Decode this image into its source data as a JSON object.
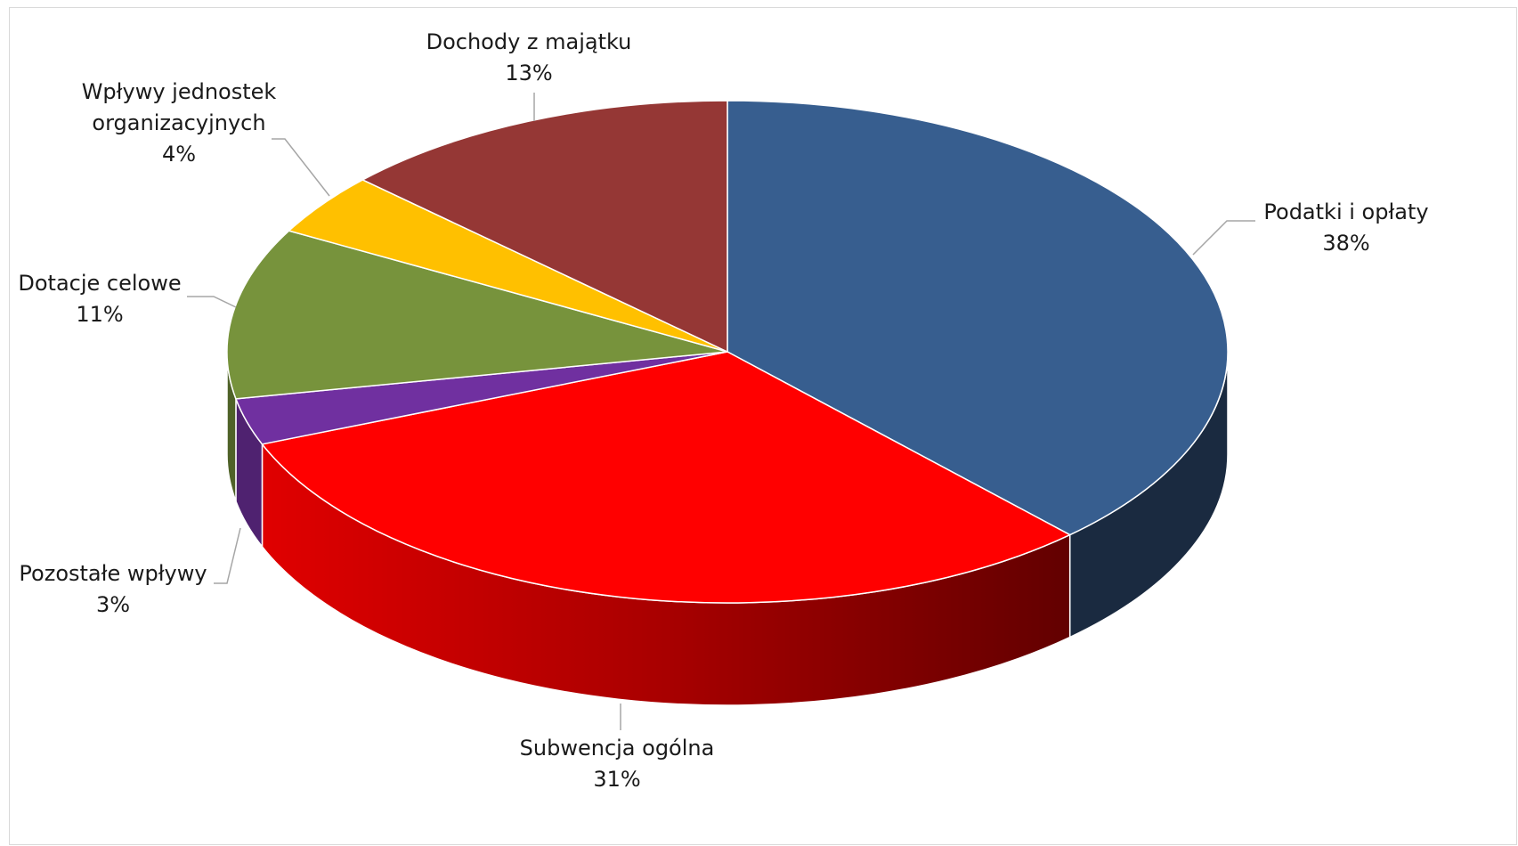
{
  "chart_data": {
    "type": "pie",
    "style": "3d",
    "title": "",
    "slices": [
      {
        "label": "Podatki i opłaty",
        "value": 38,
        "display": "38%",
        "color": "#375E8F",
        "side_color": "#1A2A40"
      },
      {
        "label": "Subwencja ogólna",
        "value": 31,
        "display": "31%",
        "color": "#FF0000",
        "side_color": "#C00000"
      },
      {
        "label": "Pozostałe wpływy",
        "value": 3,
        "display": "3%",
        "color": "#7030A0",
        "side_color": "#4F2270"
      },
      {
        "label": "Dotacje celowe",
        "value": 11,
        "display": "11%",
        "color": "#77933C",
        "side_color": "#4F6228"
      },
      {
        "label": "Wpływy jednostek organizacyjnych",
        "label_lines": [
          "Wpływy jednostek",
          "organizacyjnych"
        ],
        "value": 4,
        "display": "4%",
        "color": "#FFC000",
        "side_color": "#B38600"
      },
      {
        "label": "Dochody z majątku",
        "value": 13,
        "display": "13%",
        "color": "#953735",
        "side_color": "#632523"
      }
    ],
    "legend": "none",
    "data_labels": "outside with leader lines"
  }
}
